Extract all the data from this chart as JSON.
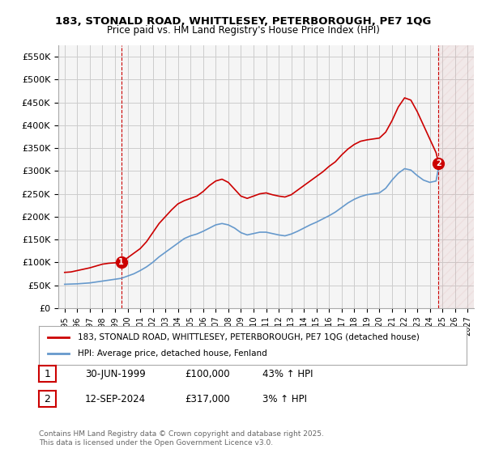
{
  "title": "183, STONALD ROAD, WHITTLESEY, PETERBOROUGH, PE7 1QG",
  "subtitle": "Price paid vs. HM Land Registry's House Price Index (HPI)",
  "legend_line1": "183, STONALD ROAD, WHITTLESEY, PETERBOROUGH, PE7 1QG (detached house)",
  "legend_line2": "HPI: Average price, detached house, Fenland",
  "transaction1_label": "1",
  "transaction1_date": "30-JUN-1999",
  "transaction1_price": "£100,000",
  "transaction1_hpi": "43% ↑ HPI",
  "transaction2_label": "2",
  "transaction2_date": "12-SEP-2024",
  "transaction2_price": "£317,000",
  "transaction2_hpi": "3% ↑ HPI",
  "copyright": "Contains HM Land Registry data © Crown copyright and database right 2025.\nThis data is licensed under the Open Government Licence v3.0.",
  "line_color_red": "#cc0000",
  "line_color_blue": "#6699cc",
  "grid_color": "#cccccc",
  "background_color": "#ffffff",
  "plot_bg_color": "#f5f5f5",
  "ylim": [
    0,
    575000
  ],
  "yticks": [
    0,
    50000,
    100000,
    150000,
    200000,
    250000,
    300000,
    350000,
    400000,
    450000,
    500000,
    550000
  ],
  "ytick_labels": [
    "£0",
    "£50K",
    "£100K",
    "£150K",
    "£200K",
    "£250K",
    "£300K",
    "£350K",
    "£400K",
    "£450K",
    "£500K",
    "£550K"
  ],
  "xlim_start": 1994.5,
  "xlim_end": 2027.5,
  "marker1_x": 1999.5,
  "marker1_y": 100000,
  "marker2_x": 2024.7,
  "marker2_y": 317000,
  "vline1_x": 1999.5,
  "vline2_x": 2024.7,
  "red_x": [
    1995,
    1995.5,
    1996,
    1996.5,
    1997,
    1997.5,
    1998,
    1998.5,
    1999,
    1999.5,
    2000,
    2000.5,
    2001,
    2001.5,
    2002,
    2002.5,
    2003,
    2003.5,
    2004,
    2004.5,
    2005,
    2005.5,
    2006,
    2006.5,
    2007,
    2007.5,
    2008,
    2008.5,
    2009,
    2009.5,
    2010,
    2010.5,
    2011,
    2011.5,
    2012,
    2012.5,
    2013,
    2013.5,
    2014,
    2014.5,
    2015,
    2015.5,
    2016,
    2016.5,
    2017,
    2017.5,
    2018,
    2018.5,
    2019,
    2019.5,
    2020,
    2020.5,
    2021,
    2021.5,
    2022,
    2022.5,
    2023,
    2023.5,
    2024,
    2024.5,
    2024.7
  ],
  "red_y": [
    78000,
    79000,
    82000,
    85000,
    88000,
    92000,
    96000,
    98000,
    99000,
    100000,
    110000,
    120000,
    130000,
    145000,
    165000,
    185000,
    200000,
    215000,
    228000,
    235000,
    240000,
    245000,
    255000,
    268000,
    278000,
    282000,
    275000,
    260000,
    245000,
    240000,
    245000,
    250000,
    252000,
    248000,
    245000,
    243000,
    248000,
    258000,
    268000,
    278000,
    288000,
    298000,
    310000,
    320000,
    335000,
    348000,
    358000,
    365000,
    368000,
    370000,
    372000,
    385000,
    410000,
    440000,
    460000,
    455000,
    430000,
    400000,
    370000,
    340000,
    317000
  ],
  "blue_x": [
    1995,
    1995.5,
    1996,
    1996.5,
    1997,
    1997.5,
    1998,
    1998.5,
    1999,
    1999.5,
    2000,
    2000.5,
    2001,
    2001.5,
    2002,
    2002.5,
    2003,
    2003.5,
    2004,
    2004.5,
    2005,
    2005.5,
    2006,
    2006.5,
    2007,
    2007.5,
    2008,
    2008.5,
    2009,
    2009.5,
    2010,
    2010.5,
    2011,
    2011.5,
    2012,
    2012.5,
    2013,
    2013.5,
    2014,
    2014.5,
    2015,
    2015.5,
    2016,
    2016.5,
    2017,
    2017.5,
    2018,
    2018.5,
    2019,
    2019.5,
    2020,
    2020.5,
    2021,
    2021.5,
    2022,
    2022.5,
    2023,
    2023.5,
    2024,
    2024.5,
    2024.7
  ],
  "blue_y": [
    52000,
    52500,
    53000,
    54000,
    55000,
    57000,
    59000,
    61000,
    63000,
    65000,
    70000,
    75000,
    82000,
    90000,
    100000,
    112000,
    122000,
    132000,
    142000,
    152000,
    158000,
    162000,
    168000,
    175000,
    182000,
    185000,
    182000,
    175000,
    165000,
    160000,
    163000,
    166000,
    166000,
    163000,
    160000,
    158000,
    162000,
    168000,
    175000,
    182000,
    188000,
    195000,
    202000,
    210000,
    220000,
    230000,
    238000,
    244000,
    248000,
    250000,
    252000,
    262000,
    280000,
    295000,
    305000,
    302000,
    290000,
    280000,
    275000,
    278000,
    308000
  ]
}
